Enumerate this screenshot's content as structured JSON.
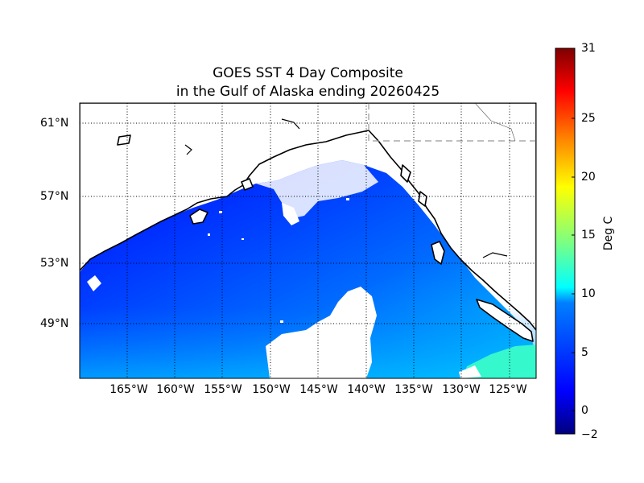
{
  "title": {
    "line1": "GOES SST 4 Day Composite",
    "line2": "in the Gulf of Alaska ending 20260425"
  },
  "map": {
    "region": "Gulf of Alaska",
    "lat_labels": [
      "61°N",
      "57°N",
      "53°N",
      "49°N"
    ],
    "lon_labels": [
      "165°W",
      "160°W",
      "155°W",
      "150°W",
      "145°W",
      "140°W",
      "135°W",
      "130°W",
      "125°W"
    ],
    "land_color": "#ffffff",
    "coastline_color": "#000000",
    "gridlines": "dotted",
    "border_style": "dashed"
  },
  "colorbar": {
    "label": "Deg C",
    "range": [
      -2,
      31
    ],
    "ticks": [
      "31",
      "25",
      "20",
      "15",
      "10",
      "5",
      "0",
      "−2"
    ],
    "tick_values": [
      31,
      25,
      20,
      15,
      10,
      5,
      0,
      -2
    ],
    "colormap": "jet",
    "colors": [
      "#00007f",
      "#0000ff",
      "#007fff",
      "#00ffff",
      "#7fff7f",
      "#ffff00",
      "#ff7f00",
      "#ff0000",
      "#7f0000"
    ]
  }
}
